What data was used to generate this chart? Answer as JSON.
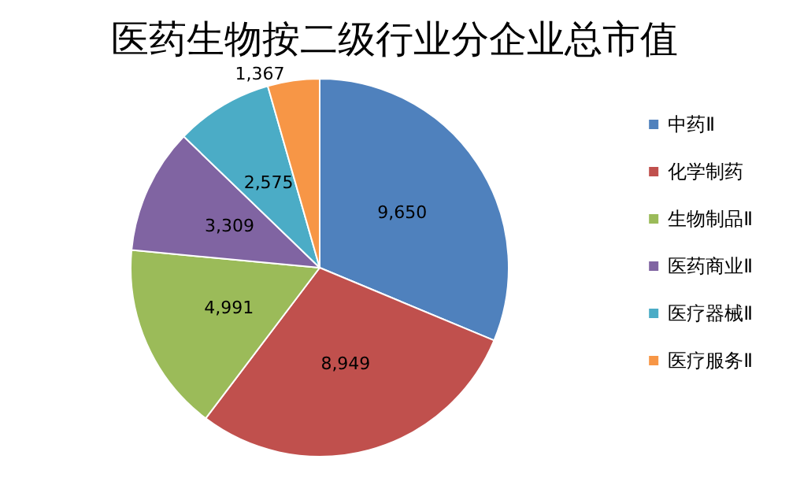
{
  "chart_data": {
    "type": "pie",
    "title": "医药生物按二级行业分企业总市值",
    "categories": [
      "中药Ⅱ",
      "化学制药",
      "生物制品Ⅱ",
      "医药商业Ⅱ",
      "医疗器械Ⅱ",
      "医疗服务Ⅱ"
    ],
    "values": [
      9650,
      8949,
      4991,
      3309,
      2575,
      1367
    ],
    "colors": [
      "#4f81bd",
      "#c0504d",
      "#9bbb59",
      "#8064a2",
      "#4bacc6",
      "#f79646"
    ],
    "value_labels": [
      "9,650",
      "8,949",
      "4,991",
      "3,309",
      "2,575",
      "1,367"
    ],
    "legend": "right"
  }
}
